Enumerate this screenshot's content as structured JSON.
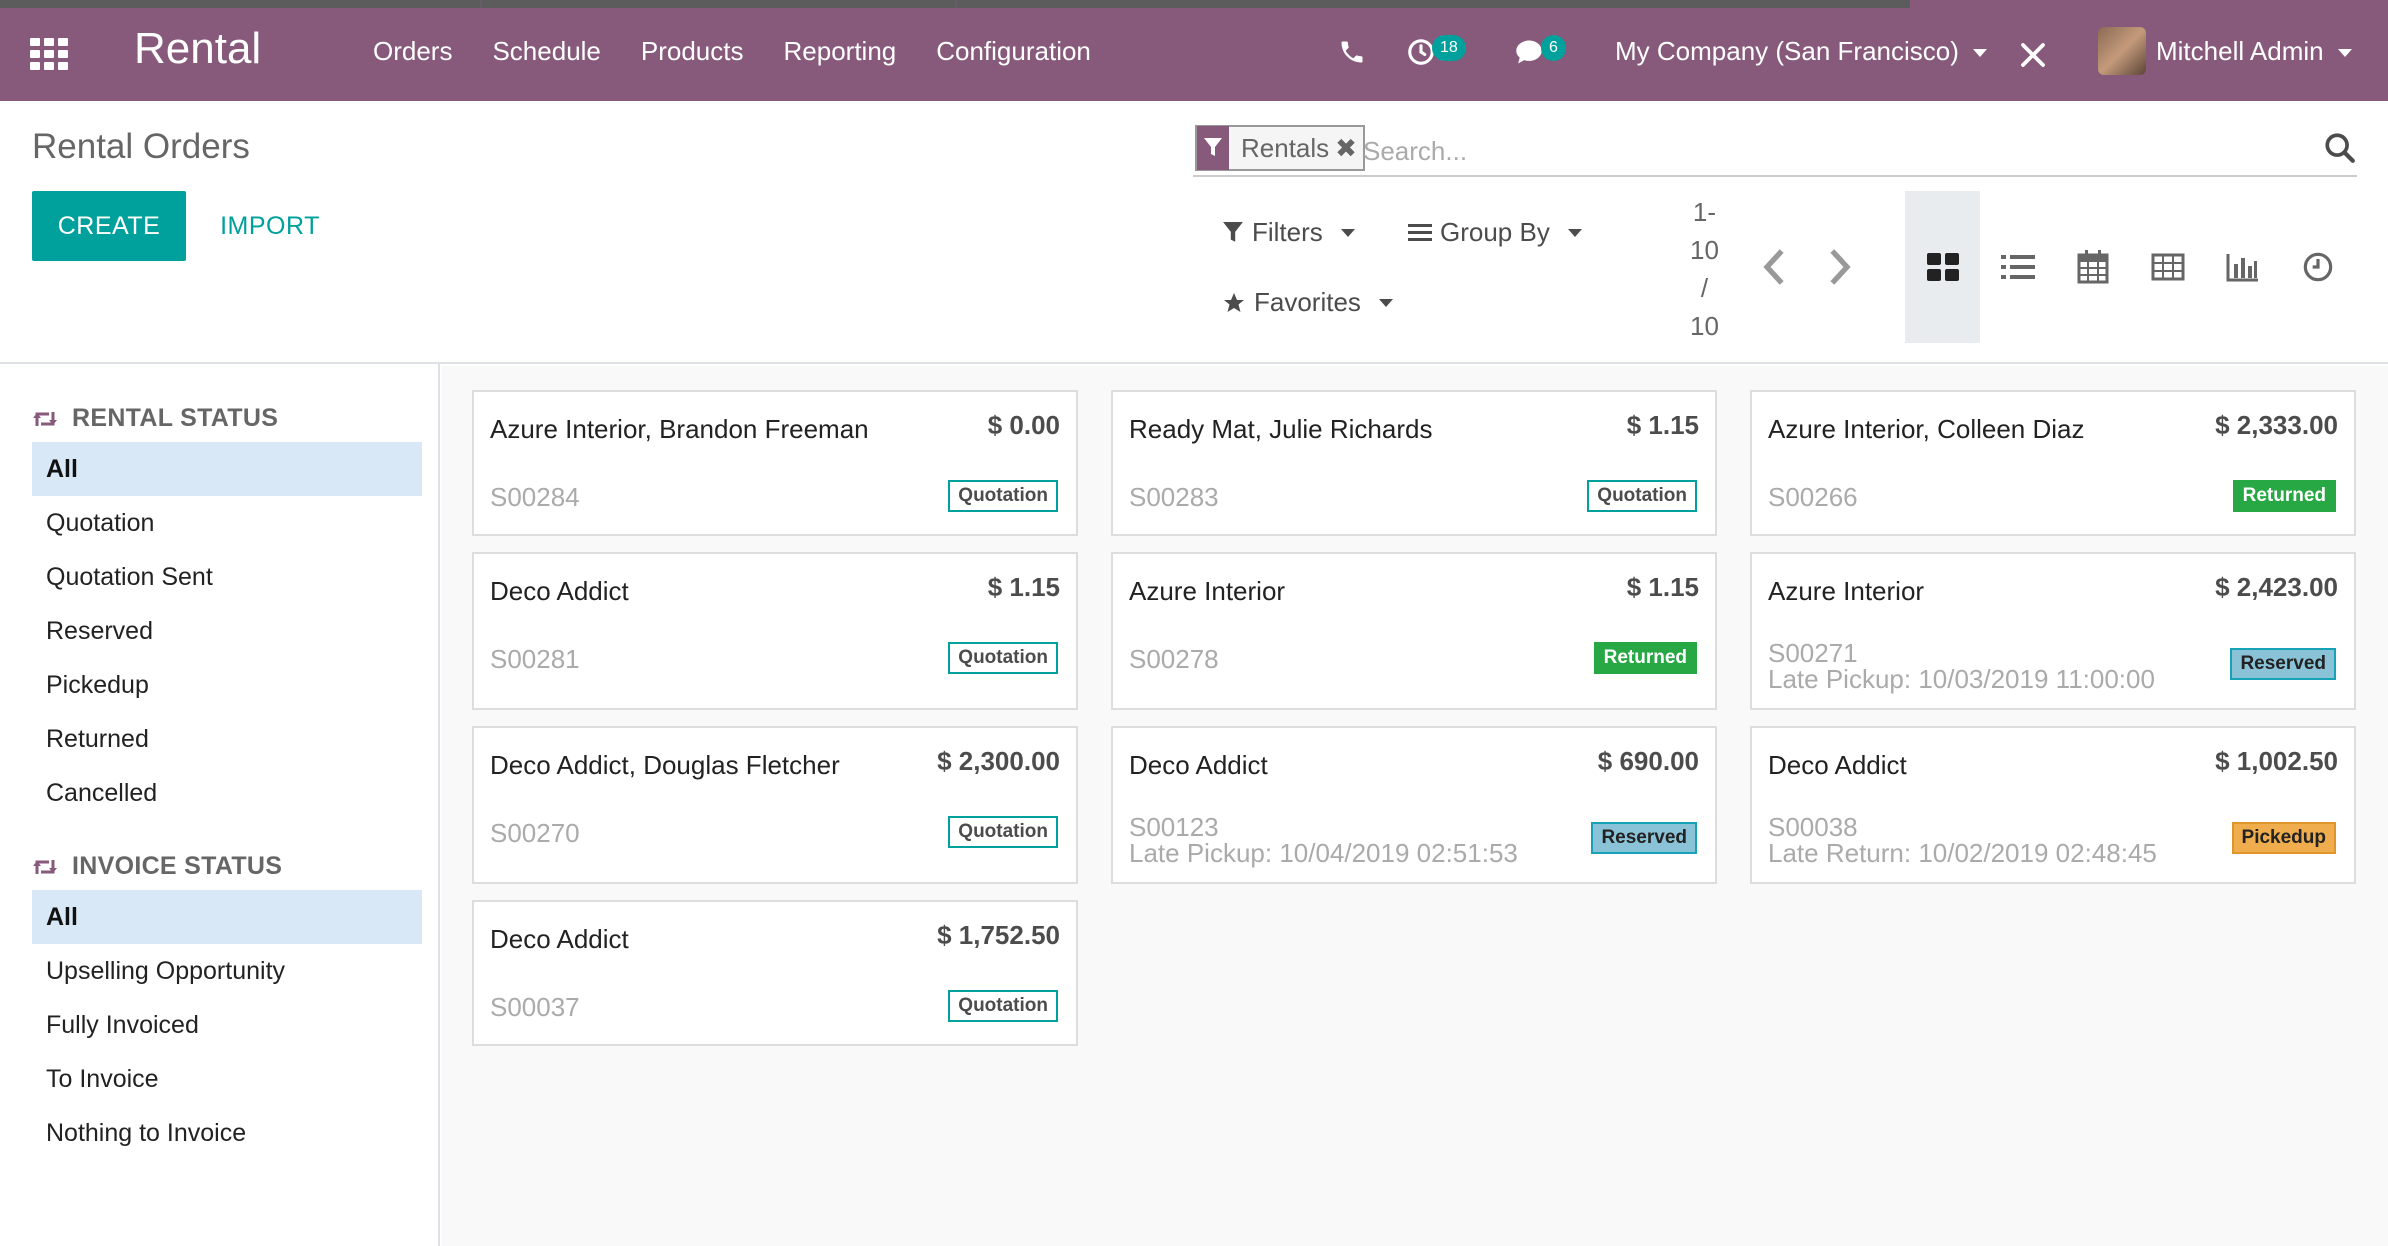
{
  "navbar": {
    "brand": "Rental",
    "menu": [
      "Orders",
      "Schedule",
      "Products",
      "Reporting",
      "Configuration"
    ],
    "activity_count": "18",
    "message_count": "6",
    "company": "My Company (San Francisco)",
    "user": "Mitchell Admin",
    "bg_color": "#875a7b"
  },
  "control_panel": {
    "title": "Rental Orders",
    "create_label": "CREATE",
    "import_label": "IMPORT",
    "facet_label": "Rentals",
    "search_placeholder": "Search...",
    "filters_label": "Filters",
    "groupby_label": "Group By",
    "favorites_label": "Favorites",
    "pager": "1-\n10\n/\n10",
    "views": [
      "kanban",
      "list",
      "calendar",
      "pivot",
      "graph",
      "activity"
    ],
    "active_view": "kanban"
  },
  "sidebar": {
    "rental_status": {
      "title": "RENTAL STATUS",
      "items": [
        "All",
        "Quotation",
        "Quotation Sent",
        "Reserved",
        "Pickedup",
        "Returned",
        "Cancelled"
      ],
      "active": "All"
    },
    "invoice_status": {
      "title": "INVOICE STATUS",
      "items": [
        "All",
        "Upselling Opportunity",
        "Fully Invoiced",
        "To Invoice",
        "Nothing to Invoice"
      ],
      "active": "All"
    }
  },
  "cards": [
    {
      "name": "Azure Interior, Brandon Freeman",
      "amount": "$ 0.00",
      "ref": "S00284",
      "late": "",
      "status": "Quotation"
    },
    {
      "name": "Ready Mat, Julie Richards",
      "amount": "$ 1.15",
      "ref": "S00283",
      "late": "",
      "status": "Quotation"
    },
    {
      "name": "Azure Interior, Colleen Diaz",
      "amount": "$ 2,333.00",
      "ref": "S00266",
      "late": "",
      "status": "Returned"
    },
    {
      "name": "Deco Addict",
      "amount": "$ 1.15",
      "ref": "S00281",
      "late": "",
      "status": "Quotation"
    },
    {
      "name": "Azure Interior",
      "amount": "$ 1.15",
      "ref": "S00278",
      "late": "",
      "status": "Returned"
    },
    {
      "name": "Azure Interior",
      "amount": "$ 2,423.00",
      "ref": "S00271",
      "late": "Late Pickup: 10/03/2019 11:00:00",
      "status": "Reserved"
    },
    {
      "name": "Deco Addict, Douglas Fletcher",
      "amount": "$ 2,300.00",
      "ref": "S00270",
      "late": "",
      "status": "Quotation"
    },
    {
      "name": "Deco Addict",
      "amount": "$ 690.00",
      "ref": "S00123",
      "late": "Late Pickup: 10/04/2019 02:51:53",
      "status": "Reserved"
    },
    {
      "name": "Deco Addict",
      "amount": "$ 1,002.50",
      "ref": "S00038",
      "late": "Late Return: 10/02/2019 02:48:45",
      "status": "Pickedup"
    },
    {
      "name": "Deco Addict",
      "amount": "$ 1,752.50",
      "ref": "S00037",
      "late": "",
      "status": "Quotation"
    }
  ]
}
